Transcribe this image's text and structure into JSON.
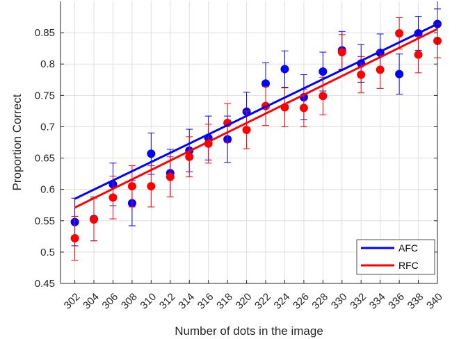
{
  "chart_data": {
    "type": "scatter",
    "xlabel": "Number of dots in the image",
    "ylabel": "Proportion Correct",
    "x": [
      302,
      304,
      306,
      308,
      310,
      312,
      314,
      316,
      318,
      320,
      322,
      324,
      326,
      328,
      330,
      332,
      334,
      336,
      338,
      340
    ],
    "x_ticks": [
      "302",
      "304",
      "306",
      "308",
      "310",
      "312",
      "314",
      "316",
      "318",
      "320",
      "322",
      "324",
      "326",
      "328",
      "330",
      "332",
      "334",
      "336",
      "338",
      "340"
    ],
    "xlim": [
      300.5,
      340
    ],
    "ylim": [
      0.45,
      0.9
    ],
    "y_ticks": [
      "0.45",
      "0.5",
      "0.55",
      "0.6",
      "0.65",
      "0.7",
      "0.75",
      "0.8",
      "0.85"
    ],
    "grid": true,
    "legend_position": "bottom-right",
    "series": [
      {
        "name": "AFC",
        "color": "#0000ff",
        "values": [
          0.548,
          0.553,
          0.608,
          0.578,
          0.657,
          0.626,
          0.662,
          0.682,
          0.68,
          0.724,
          0.769,
          0.792,
          0.747,
          0.788,
          0.822,
          0.801,
          0.818,
          0.784,
          0.849,
          0.864
        ],
        "error": [
          0.038,
          0.035,
          0.034,
          0.036,
          0.033,
          0.038,
          0.034,
          0.035,
          0.037,
          0.031,
          0.033,
          0.029,
          0.036,
          0.031,
          0.03,
          0.03,
          0.03,
          0.032,
          0.027,
          0.024
        ],
        "fit": [
          0.585,
          0.864
        ]
      },
      {
        "name": "RFC",
        "color": "#ff0000",
        "values": [
          0.522,
          0.552,
          0.587,
          0.605,
          0.605,
          0.62,
          0.652,
          0.673,
          0.706,
          0.695,
          0.733,
          0.731,
          0.73,
          0.749,
          0.819,
          0.783,
          0.791,
          0.849,
          0.815,
          0.837
        ],
        "error": [
          0.035,
          0.034,
          0.034,
          0.033,
          0.033,
          0.032,
          0.032,
          0.031,
          0.031,
          0.03,
          0.031,
          0.031,
          0.03,
          0.03,
          0.028,
          0.029,
          0.03,
          0.025,
          0.029,
          0.027
        ],
        "fit": [
          0.571,
          0.856
        ]
      }
    ]
  }
}
